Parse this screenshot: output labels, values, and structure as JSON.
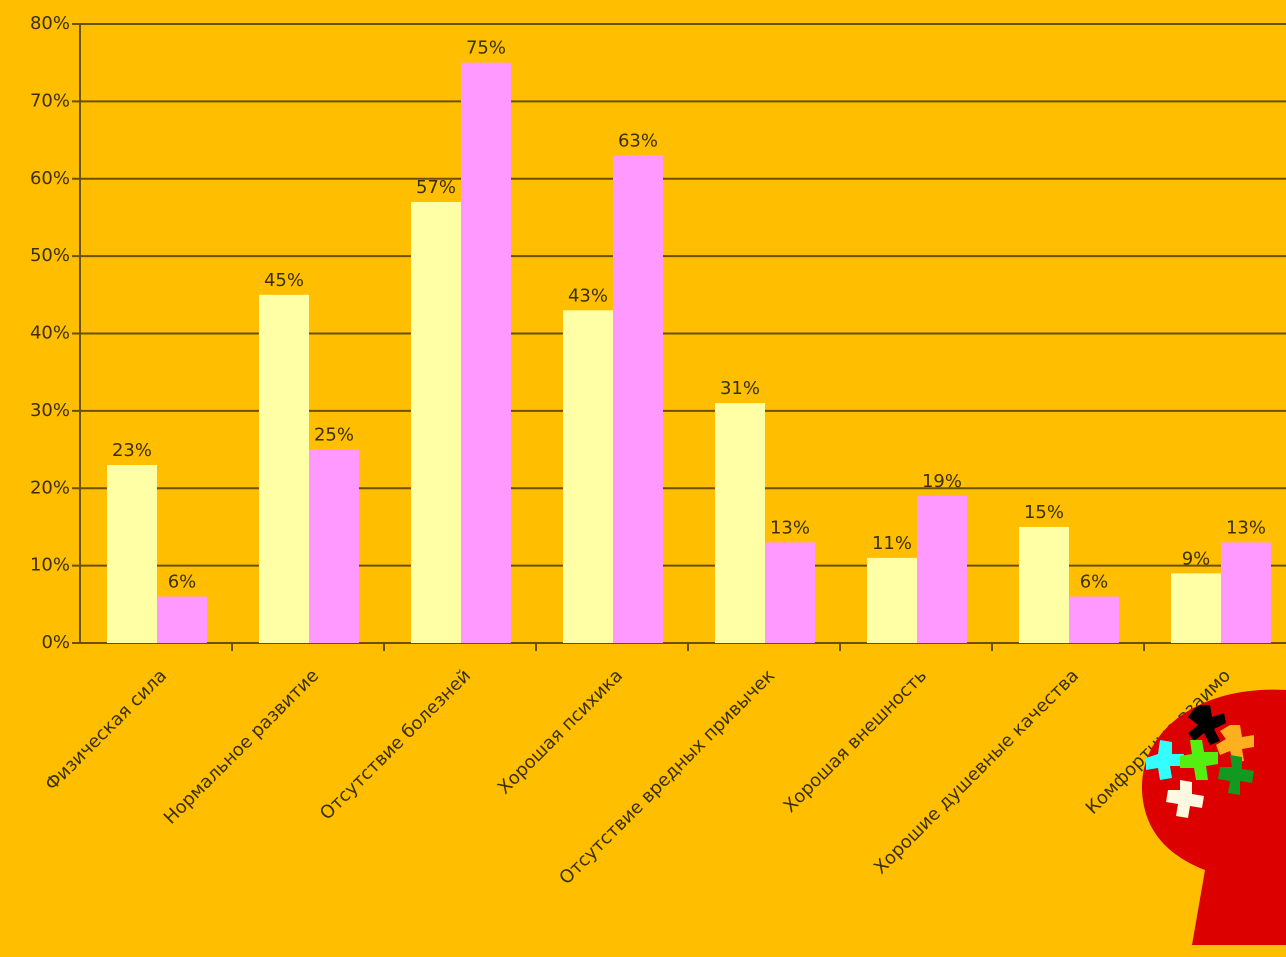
{
  "chart_data": {
    "type": "bar",
    "categories": [
      "Физическая сила",
      "Нормальное развитие",
      "Отсутствие болезней",
      "Хорошая психика",
      "Отсутствие вредных привычек",
      "Хорошая внешность",
      "Хорошие душевные качества",
      "Комфортные взаимо"
    ],
    "series": [
      {
        "color": "#ffffa6",
        "values": [
          23,
          45,
          57,
          43,
          31,
          11,
          15,
          9
        ],
        "value_labels": [
          "23%",
          "45%",
          "57%",
          "43%",
          "31%",
          "11%",
          "15%",
          "9%"
        ]
      },
      {
        "color": "#ff99ff",
        "values": [
          6,
          25,
          75,
          63,
          13,
          19,
          6,
          13
        ],
        "value_labels": [
          "6%",
          "25%",
          "75%",
          "63%",
          "13%",
          "19%",
          "6%",
          "13%"
        ]
      }
    ],
    "ylim": [
      0,
      80
    ],
    "yticks": [
      {
        "value": 0,
        "label": "0%"
      },
      {
        "value": 10,
        "label": "10%"
      },
      {
        "value": 20,
        "label": "20%"
      },
      {
        "value": 30,
        "label": "30%"
      },
      {
        "value": 40,
        "label": "40%"
      },
      {
        "value": 50,
        "label": "50%"
      },
      {
        "value": 60,
        "label": "60%"
      },
      {
        "value": 70,
        "label": "70%"
      },
      {
        "value": 80,
        "label": "80%"
      }
    ],
    "grid": true
  }
}
